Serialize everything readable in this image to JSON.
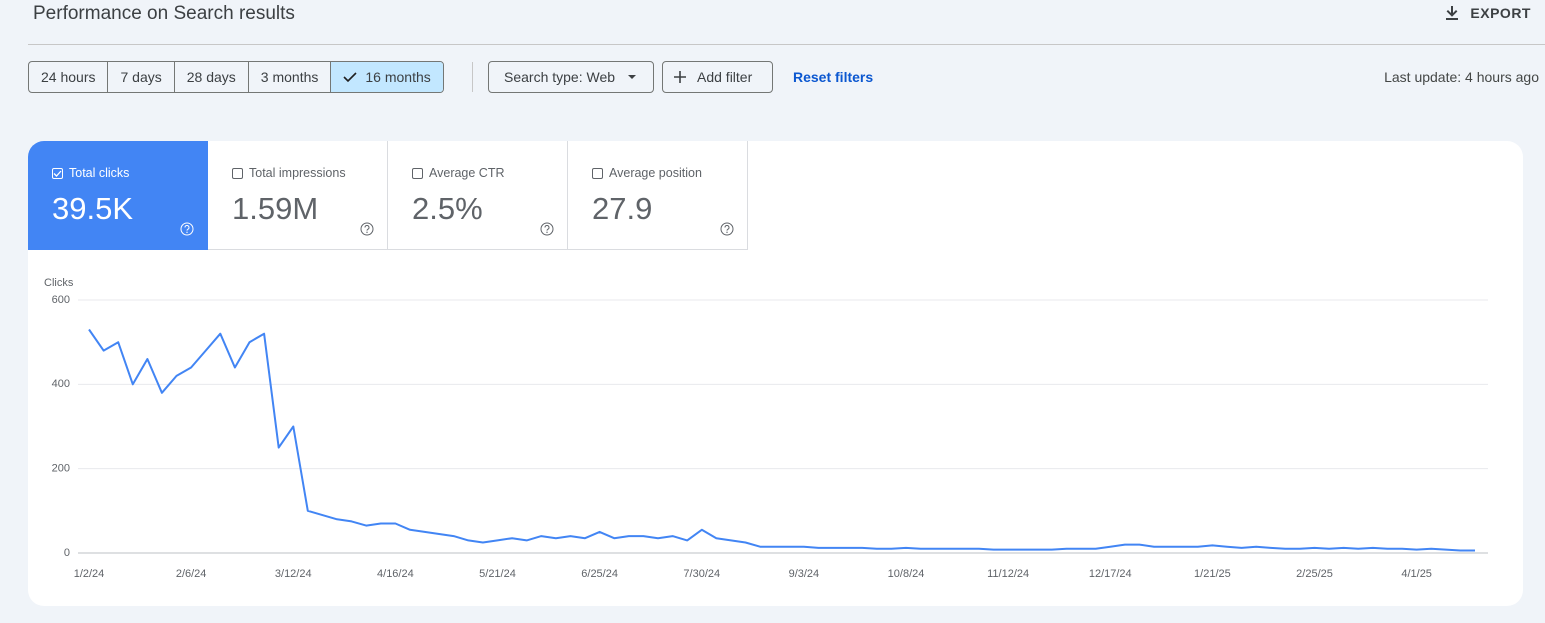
{
  "header": {
    "title": "Performance on Search results",
    "export": "EXPORT"
  },
  "toolbar": {
    "ranges": [
      "24 hours",
      "7 days",
      "28 days",
      "3 months",
      "16 months"
    ],
    "selected_range": 4,
    "search_type": "Search type: Web",
    "add_filter": "Add filter",
    "reset": "Reset filters",
    "last_update": "Last update: 4 hours ago"
  },
  "metrics": [
    {
      "label": "Total clicks",
      "value": "39.5K",
      "checked": true
    },
    {
      "label": "Total impressions",
      "value": "1.59M",
      "checked": false
    },
    {
      "label": "Average CTR",
      "value": "2.5%",
      "checked": false
    },
    {
      "label": "Average position",
      "value": "27.9",
      "checked": false
    }
  ],
  "chart_data": {
    "type": "line",
    "y_label": "Clicks",
    "x": [
      "1/2/24",
      "1/7/24",
      "1/12/24",
      "1/17/24",
      "1/22/24",
      "1/27/24",
      "2/1/24",
      "2/6/24",
      "2/11/24",
      "2/16/24",
      "2/21/24",
      "2/26/24",
      "3/2/24",
      "3/7/24",
      "3/12/24",
      "3/17/24",
      "3/22/24",
      "3/27/24",
      "4/1/24",
      "4/6/24",
      "4/11/24",
      "4/16/24",
      "4/21/24",
      "4/26/24",
      "5/1/24",
      "5/6/24",
      "5/11/24",
      "5/16/24",
      "5/21/24",
      "5/26/24",
      "5/31/24",
      "6/5/24",
      "6/10/24",
      "6/15/24",
      "6/20/24",
      "6/25/24",
      "6/30/24",
      "7/5/24",
      "7/10/24",
      "7/15/24",
      "7/20/24",
      "7/25/24",
      "7/30/24",
      "8/4/24",
      "8/9/24",
      "8/14/24",
      "8/19/24",
      "8/24/24",
      "8/29/24",
      "9/3/24",
      "9/8/24",
      "9/13/24",
      "9/18/24",
      "9/23/24",
      "9/28/24",
      "10/3/24",
      "10/8/24",
      "10/13/24",
      "10/18/24",
      "10/23/24",
      "10/28/24",
      "11/2/24",
      "11/7/24",
      "11/12/24",
      "11/17/24",
      "11/22/24",
      "11/27/24",
      "12/2/24",
      "12/7/24",
      "12/12/24",
      "12/17/24",
      "12/22/24",
      "12/27/24",
      "1/1/25",
      "1/6/25",
      "1/11/25",
      "1/16/25",
      "1/21/25",
      "1/26/25",
      "1/31/25",
      "2/5/25",
      "2/10/25",
      "2/15/25",
      "2/20/25",
      "2/25/25",
      "3/2/25",
      "3/7/25",
      "3/12/25",
      "3/17/25",
      "3/22/25",
      "3/27/25",
      "4/1/25",
      "4/6/25",
      "4/11/25",
      "4/16/25",
      "4/21/25"
    ],
    "series": [
      {
        "color": "#4285f4",
        "values": [
          530,
          480,
          500,
          400,
          460,
          380,
          420,
          440,
          480,
          520,
          440,
          500,
          520,
          250,
          300,
          100,
          90,
          80,
          75,
          65,
          70,
          70,
          55,
          50,
          45,
          40,
          30,
          25,
          30,
          35,
          30,
          40,
          35,
          40,
          35,
          50,
          35,
          40,
          40,
          35,
          40,
          30,
          55,
          35,
          30,
          25,
          15,
          15,
          15,
          15,
          12,
          12,
          12,
          12,
          10,
          10,
          12,
          10,
          10,
          10,
          10,
          10,
          8,
          8,
          8,
          8,
          8,
          10,
          10,
          10,
          15,
          20,
          20,
          15,
          15,
          15,
          15,
          18,
          15,
          12,
          15,
          12,
          10,
          10,
          12,
          10,
          12,
          10,
          12,
          10,
          10,
          8,
          10,
          8,
          6,
          6
        ]
      }
    ],
    "ylim": [
      0,
      600
    ],
    "yticks": [
      0,
      200,
      400,
      600
    ],
    "grid": true,
    "xticks": [
      "1/2/24",
      "2/6/24",
      "3/12/24",
      "4/16/24",
      "5/21/24",
      "6/25/24",
      "7/30/24",
      "9/3/24",
      "10/8/24",
      "11/12/24",
      "12/17/24",
      "1/21/25",
      "2/25/25",
      "4/1/25"
    ]
  }
}
